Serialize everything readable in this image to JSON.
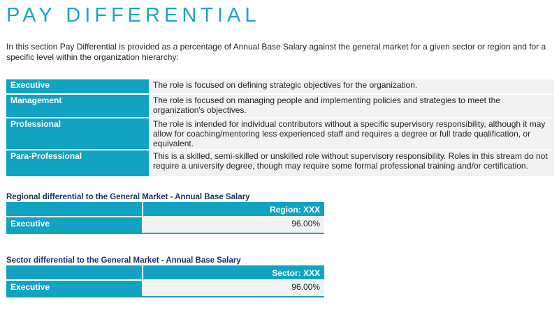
{
  "page": {
    "title": "PAY DIFFERENTIAL",
    "intro": "In this section Pay Differential is provided as a percentage of Annual Base Salary against the general market for a given sector or region and for a specific level within the organization hierarchy:"
  },
  "definitions": [
    {
      "label": "Executive",
      "description": "The role is focused on defining strategic objectives for the organization."
    },
    {
      "label": "Management",
      "description": "The role is focused on managing people and implementing policies and strategies to meet the organization's objectives."
    },
    {
      "label": "Professional",
      "description": "The role is intended for individual contributors without a specific supervisory responsibility, although it may allow for coaching/mentoring less experienced staff and requires a degree or full trade qualification, or equivalent."
    },
    {
      "label": "Para-Professional",
      "description": "This is a skilled, semi-skilled or unskilled role without supervisory responsibility. Roles in this stream do not require a university degree, though may require some formal professional training and/or certification."
    }
  ],
  "regional": {
    "title": "Regional differential to the General Market - Annual Base Salary",
    "header": "Region: XXX",
    "row_label": "Executive",
    "row_value": "96.00%"
  },
  "sector": {
    "title": "Sector differential to the General Market - Annual Base Salary",
    "header": "Sector: XXX",
    "row_label": "Executive",
    "row_value": "96.00%"
  }
}
